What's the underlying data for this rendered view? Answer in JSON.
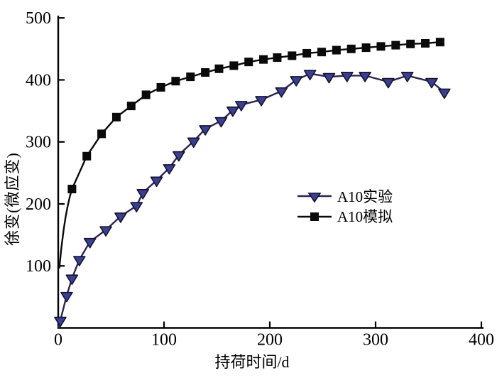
{
  "figure": {
    "background": "#ffffff"
  },
  "chart_data": {
    "type": "line",
    "title": "",
    "xlabel": "持荷时间/d",
    "ylabel": "徐变(微应变)",
    "xlim": [
      0,
      400
    ],
    "ylim": [
      0,
      500
    ],
    "x_ticks": [
      0,
      100,
      200,
      300,
      400
    ],
    "y_ticks": [
      100,
      200,
      300,
      400,
      500
    ],
    "grid": false,
    "legend_position": "center-right",
    "axis_color": "#000000",
    "series": [
      {
        "name": "A10实验",
        "marker": "triangle-down",
        "line_color": "#2b2551",
        "marker_fill": "#3b3f93",
        "marker_edge": "#14122b",
        "lead_in": [
          [
            0,
            0
          ]
        ],
        "points": [
          [
            2,
            12
          ],
          [
            8,
            52
          ],
          [
            13,
            80
          ],
          [
            20,
            110
          ],
          [
            30,
            139
          ],
          [
            45,
            158
          ],
          [
            59,
            180
          ],
          [
            74,
            197
          ],
          [
            80,
            218
          ],
          [
            93,
            238
          ],
          [
            105,
            258
          ],
          [
            114,
            279
          ],
          [
            128,
            301
          ],
          [
            139,
            321
          ],
          [
            154,
            334
          ],
          [
            165,
            351
          ],
          [
            173,
            360
          ],
          [
            192,
            368
          ],
          [
            211,
            382
          ],
          [
            225,
            400
          ],
          [
            238,
            410
          ],
          [
            256,
            405
          ],
          [
            273,
            407
          ],
          [
            290,
            407
          ],
          [
            312,
            397
          ],
          [
            330,
            407
          ],
          [
            353,
            397
          ],
          [
            365,
            380
          ]
        ]
      },
      {
        "name": "A10模拟",
        "marker": "square",
        "line_color": "#0a0a0a",
        "marker_fill": "#0a0a0a",
        "marker_edge": "#0a0a0a",
        "lead_in": [
          [
            1,
            96
          ],
          [
            3,
            130
          ],
          [
            5,
            157
          ],
          [
            7,
            179
          ],
          [
            9,
            197
          ],
          [
            11,
            212
          ]
        ],
        "points": [
          [
            13,
            224
          ],
          [
            27,
            277
          ],
          [
            41,
            313
          ],
          [
            55,
            340
          ],
          [
            69,
            358
          ],
          [
            83,
            376
          ],
          [
            97,
            388
          ],
          [
            111,
            398
          ],
          [
            125,
            405
          ],
          [
            139,
            412
          ],
          [
            152,
            418
          ],
          [
            166,
            423
          ],
          [
            180,
            429
          ],
          [
            194,
            433
          ],
          [
            207,
            436
          ],
          [
            221,
            439
          ],
          [
            235,
            443
          ],
          [
            249,
            445
          ],
          [
            263,
            448
          ],
          [
            277,
            450
          ],
          [
            291,
            452
          ],
          [
            305,
            454
          ],
          [
            319,
            456
          ],
          [
            333,
            458
          ],
          [
            347,
            459
          ],
          [
            361,
            461
          ]
        ]
      }
    ]
  },
  "legend": {
    "items": [
      {
        "label": "A10实验"
      },
      {
        "label": "A10模拟"
      }
    ]
  }
}
